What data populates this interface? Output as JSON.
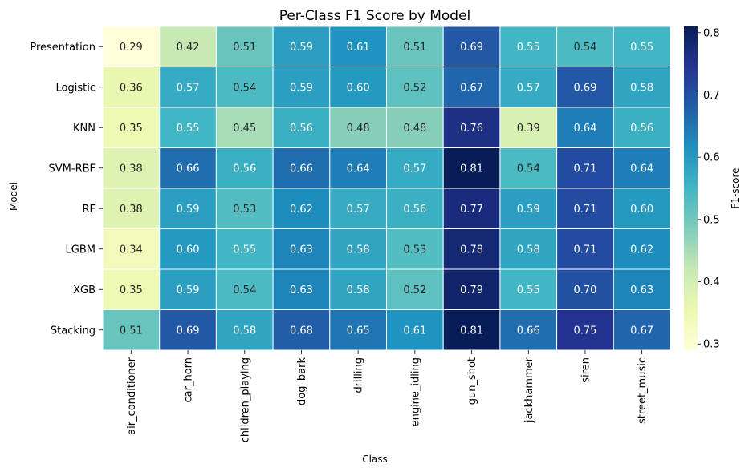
{
  "chart_data": {
    "type": "heatmap",
    "title": "Per-Class F1 Score by Model",
    "xlabel": "Class",
    "ylabel": "Model",
    "colorbar_label": "F1-score",
    "colorbar_ticks": [
      0.3,
      0.4,
      0.5,
      0.6,
      0.7,
      0.8
    ],
    "color_range": [
      0.29,
      0.81
    ],
    "colormap": "YlGnBu",
    "columns": [
      "air_conditioner",
      "car_horn",
      "children_playing",
      "dog_bark",
      "drilling",
      "engine_idling",
      "gun_shot",
      "jackhammer",
      "siren",
      "street_music"
    ],
    "rows": [
      "Presentation",
      "Logistic",
      "KNN",
      "SVM-RBF",
      "RF",
      "LGBM",
      "XGB",
      "Stacking"
    ],
    "values": [
      [
        0.29,
        0.42,
        0.51,
        0.59,
        0.61,
        0.51,
        0.69,
        0.55,
        0.54,
        0.55
      ],
      [
        0.36,
        0.57,
        0.54,
        0.59,
        0.6,
        0.52,
        0.67,
        0.57,
        0.69,
        0.58
      ],
      [
        0.35,
        0.55,
        0.45,
        0.56,
        0.48,
        0.48,
        0.76,
        0.39,
        0.64,
        0.56
      ],
      [
        0.38,
        0.66,
        0.56,
        0.66,
        0.64,
        0.57,
        0.81,
        0.54,
        0.71,
        0.64
      ],
      [
        0.38,
        0.59,
        0.53,
        0.62,
        0.57,
        0.56,
        0.77,
        0.59,
        0.71,
        0.6
      ],
      [
        0.34,
        0.6,
        0.55,
        0.63,
        0.58,
        0.53,
        0.78,
        0.58,
        0.71,
        0.62
      ],
      [
        0.35,
        0.59,
        0.54,
        0.63,
        0.58,
        0.52,
        0.79,
        0.55,
        0.7,
        0.63
      ],
      [
        0.51,
        0.69,
        0.58,
        0.68,
        0.65,
        0.61,
        0.81,
        0.66,
        0.75,
        0.67
      ]
    ],
    "annotation_format": "0.00",
    "grid": false,
    "legend": "colorbar-right"
  }
}
